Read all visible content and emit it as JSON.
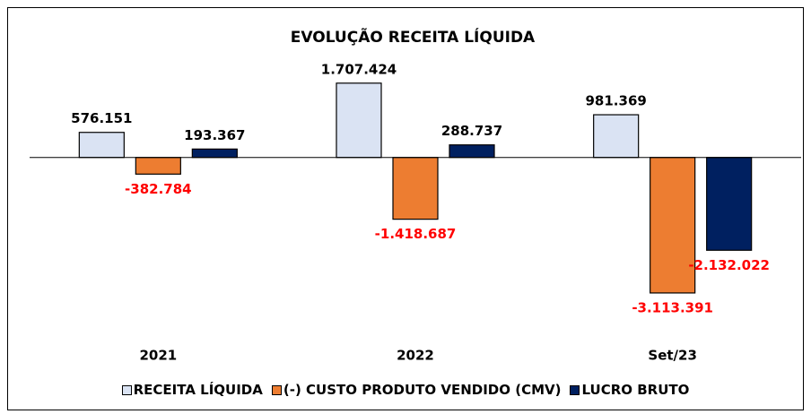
{
  "chart_data": {
    "type": "bar",
    "title": "EVOLUÇÃO RECEITA LÍQUIDA",
    "categories": [
      "2021",
      "2022",
      "Set/23"
    ],
    "series": [
      {
        "name": "RECEITA LÍQUIDA",
        "color": "#dae3f3",
        "values": [
          576151,
          1707424,
          981369
        ],
        "value_labels": [
          "576.151",
          "1.707.424",
          "981.369"
        ]
      },
      {
        "name": "(-) CUSTO PRODUTO VENDIDO (CMV)",
        "color": "#ed7d31",
        "values": [
          -382784,
          -1418687,
          -3113391
        ],
        "value_labels": [
          "-382.784",
          "-1.418.687",
          "-3.113.391"
        ]
      },
      {
        "name": "LUCRO BRUTO",
        "color": "#002060",
        "values": [
          193367,
          288737,
          -2132022
        ],
        "value_labels": [
          "193.367",
          "288.737",
          "-2.132.022"
        ]
      }
    ],
    "ylim": [
      -4000000,
      3000000
    ],
    "label_color": "#000000",
    "negative_label_color": "#ff0000",
    "legend": "bottom"
  }
}
